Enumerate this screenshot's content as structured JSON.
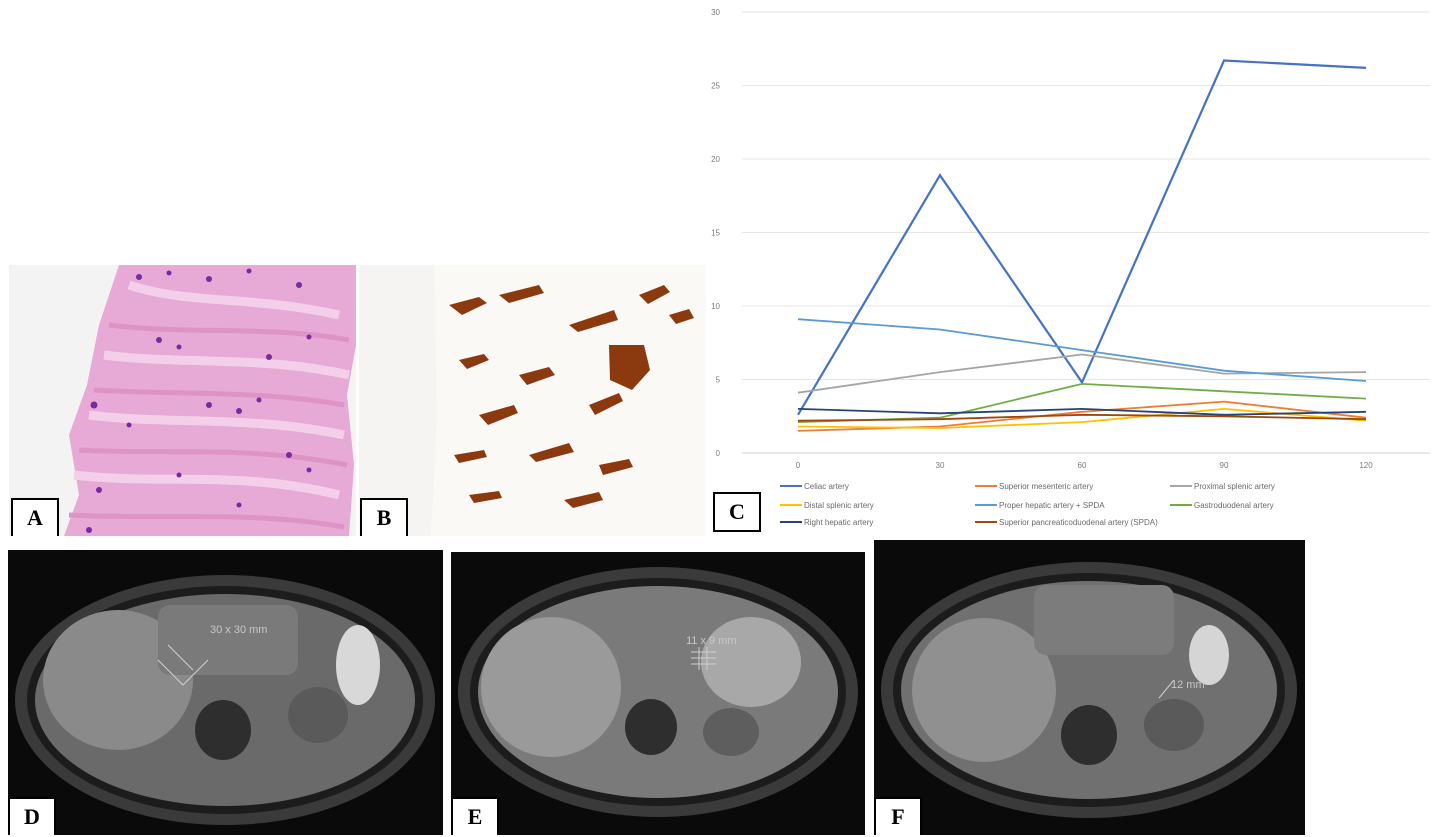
{
  "panels": {
    "a": {
      "label": "A"
    },
    "b": {
      "label": "B"
    },
    "c": {
      "label": "C"
    },
    "d": {
      "label": "D",
      "measurement": "30 x 30 mm"
    },
    "e": {
      "label": "E",
      "measurement": "11 x 9 mm"
    },
    "f": {
      "label": "F",
      "measurement": "12 mm"
    }
  },
  "chart_data": {
    "type": "line",
    "x": [
      0,
      30,
      60,
      90,
      120
    ],
    "ylim": [
      0,
      30
    ],
    "yticks": [
      0,
      5,
      10,
      15,
      20,
      25,
      30
    ],
    "grid": true,
    "legend_position": "bottom",
    "series": [
      {
        "name": "Celiac artery",
        "color": "#4472c4",
        "values": [
          2.6,
          18.9,
          4.8,
          26.7,
          26.2
        ]
      },
      {
        "name": "Superior mesenteric artery",
        "color": "#ed7d31",
        "values": [
          1.5,
          1.8,
          2.8,
          3.5,
          2.4
        ]
      },
      {
        "name": "Proximal splenic artery",
        "color": "#a5a5a5",
        "values": [
          4.1,
          5.5,
          6.7,
          5.4,
          5.5
        ]
      },
      {
        "name": "Distal splenic artery",
        "color": "#ffc000",
        "values": [
          1.8,
          1.7,
          2.1,
          3.0,
          2.2
        ]
      },
      {
        "name": "Proper hepatic artery + SPDA",
        "color": "#5b9bd5",
        "values": [
          9.1,
          8.4,
          7.0,
          5.6,
          4.9
        ]
      },
      {
        "name": "Gastroduodenal artery",
        "color": "#70ad47",
        "values": [
          2.1,
          2.4,
          4.7,
          4.2,
          3.7
        ]
      },
      {
        "name": "Right hepatic artery",
        "color": "#264478",
        "values": [
          3.0,
          2.7,
          3.0,
          2.6,
          2.8
        ]
      },
      {
        "name": "Superior pancreaticoduodenal artery (SPDA)",
        "color": "#9e480e",
        "values": [
          2.2,
          2.3,
          2.6,
          2.5,
          2.3
        ]
      }
    ]
  }
}
